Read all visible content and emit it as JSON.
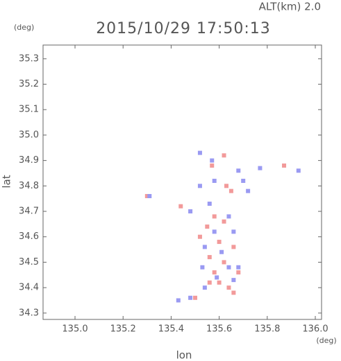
{
  "chart_data": {
    "type": "scatter",
    "title": "2015/10/29 17:50:13",
    "subtitle": "ALT(km) 2.0",
    "x_label": "lon",
    "y_label": "lat",
    "x_unit": "(deg)",
    "y_unit": "(deg)",
    "xlim": [
      134.867,
      136.026
    ],
    "ylim": [
      34.275,
      35.354
    ],
    "xticks": [
      {
        "value": 135,
        "label": "135.0"
      },
      135.2,
      135.4,
      135.6,
      135.8,
      {
        "value": 136,
        "label": "136.0"
      }
    ],
    "yticks": [
      34.3,
      34.4,
      34.5,
      34.6,
      34.7,
      34.8,
      34.9,
      {
        "value": 35,
        "label": "35.0"
      },
      35.1,
      35.2,
      35.3
    ],
    "grid": false,
    "series": [
      {
        "color": "#f29a9a",
        "x": [
          135.62,
          135.57,
          135.87,
          135.63,
          135.65,
          135.3,
          135.44,
          135.58,
          135.62,
          135.55,
          135.52,
          135.6,
          135.66,
          135.56,
          135.62,
          135.58,
          135.68,
          135.6,
          135.64,
          135.56,
          135.66,
          135.5
        ],
        "values": [
          34.92,
          34.88,
          34.88,
          34.8,
          34.78,
          34.76,
          34.72,
          34.68,
          34.66,
          34.64,
          34.6,
          34.58,
          34.56,
          34.52,
          34.5,
          34.46,
          34.46,
          34.42,
          34.4,
          34.42,
          34.38,
          34.36
        ]
      },
      {
        "color": "#9a9af2",
        "x": [
          135.52,
          135.57,
          135.68,
          135.77,
          135.93,
          135.58,
          135.52,
          135.7,
          135.72,
          135.31,
          135.56,
          135.48,
          135.64,
          135.58,
          135.66,
          135.54,
          135.61,
          135.53,
          135.64,
          135.68,
          135.59,
          135.66,
          135.43,
          135.48,
          135.54
        ],
        "values": [
          34.93,
          34.9,
          34.86,
          34.87,
          34.86,
          34.82,
          34.8,
          34.82,
          34.78,
          34.76,
          34.73,
          34.7,
          34.68,
          34.62,
          34.62,
          34.56,
          34.54,
          34.48,
          34.48,
          34.48,
          34.44,
          34.43,
          34.35,
          34.36,
          34.4
        ]
      }
    ]
  }
}
